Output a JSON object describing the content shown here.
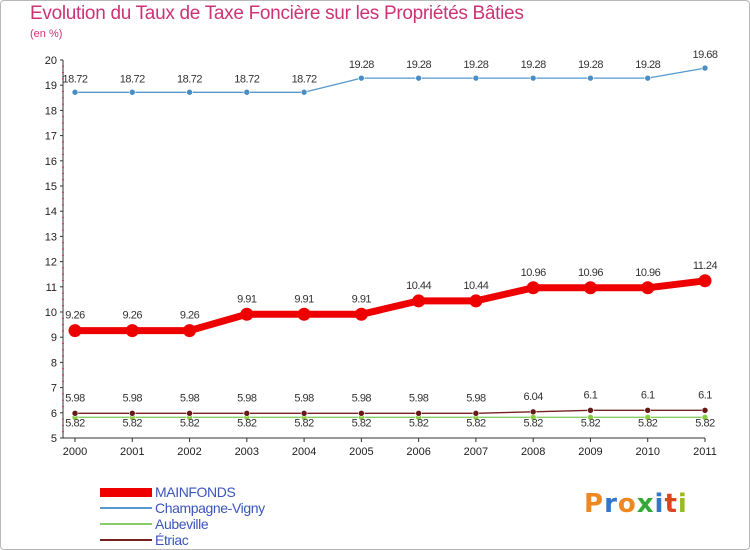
{
  "title": "Evolution du Taux de Taxe Foncière sur les Propriétés Bâties",
  "subtitle": "(en %)",
  "logo": {
    "letters": [
      "P",
      "r",
      "o",
      "x",
      "i",
      "t",
      "i"
    ],
    "colors": [
      "#ee8822",
      "#3377cc",
      "#ee8822",
      "#33aa33",
      "#3377cc",
      "#dd4422",
      "#99bb22"
    ]
  },
  "chart_data": {
    "type": "line",
    "title": "Evolution du Taux de Taxe Foncière sur les Propriétés Bâties",
    "ylabel": "(en %)",
    "xlabel": "",
    "ylim": [
      5,
      20
    ],
    "yticks": [
      "5",
      "6",
      "7",
      "8",
      "9",
      "10",
      "11",
      "12",
      "13",
      "14",
      "15",
      "16",
      "17",
      "18",
      "19",
      "20"
    ],
    "categories": [
      "2000",
      "2001",
      "2002",
      "2003",
      "2004",
      "2005",
      "2006",
      "2007",
      "2008",
      "2009",
      "2010",
      "2011"
    ],
    "series": [
      {
        "name": "MAINFONDS",
        "color": "#ee0000",
        "values": [
          9.26,
          9.26,
          9.26,
          9.91,
          9.91,
          9.91,
          10.44,
          10.44,
          10.96,
          10.96,
          10.96,
          11.24
        ],
        "labels": [
          "9.26",
          "9.26",
          "9.26",
          "9.91",
          "9.91",
          "9.91",
          "10.44",
          "10.44",
          "10.96",
          "10.96",
          "10.96",
          "11.24"
        ]
      },
      {
        "name": "Champagne-Vigny",
        "color": "#5599cc",
        "values": [
          18.72,
          18.72,
          18.72,
          18.72,
          18.72,
          19.28,
          19.28,
          19.28,
          19.28,
          19.28,
          19.28,
          19.68
        ],
        "labels": [
          "18.72",
          "18.72",
          "18.72",
          "18.72",
          "18.72",
          "19.28",
          "19.28",
          "19.28",
          "19.28",
          "19.28",
          "19.28",
          "19.68"
        ]
      },
      {
        "name": "Aubeville",
        "color": "#88cc66",
        "values": [
          5.82,
          5.82,
          5.82,
          5.82,
          5.82,
          5.82,
          5.82,
          5.82,
          5.82,
          5.82,
          5.82,
          5.82
        ],
        "labels": [
          "5.82",
          "5.82",
          "5.82",
          "5.82",
          "5.82",
          "5.82",
          "5.82",
          "5.82",
          "5.82",
          "5.82",
          "5.82",
          "5.82"
        ]
      },
      {
        "name": "Étriac",
        "color": "#772222",
        "values": [
          5.98,
          5.98,
          5.98,
          5.98,
          5.98,
          5.98,
          5.98,
          5.98,
          6.04,
          6.1,
          6.1,
          6.1
        ],
        "labels": [
          "5.98",
          "5.98",
          "5.98",
          "5.98",
          "5.98",
          "5.98",
          "5.98",
          "5.98",
          "6.04",
          "6.1",
          "6.1",
          "6.1"
        ]
      }
    ],
    "grid": false,
    "legend": "bottom-left"
  }
}
